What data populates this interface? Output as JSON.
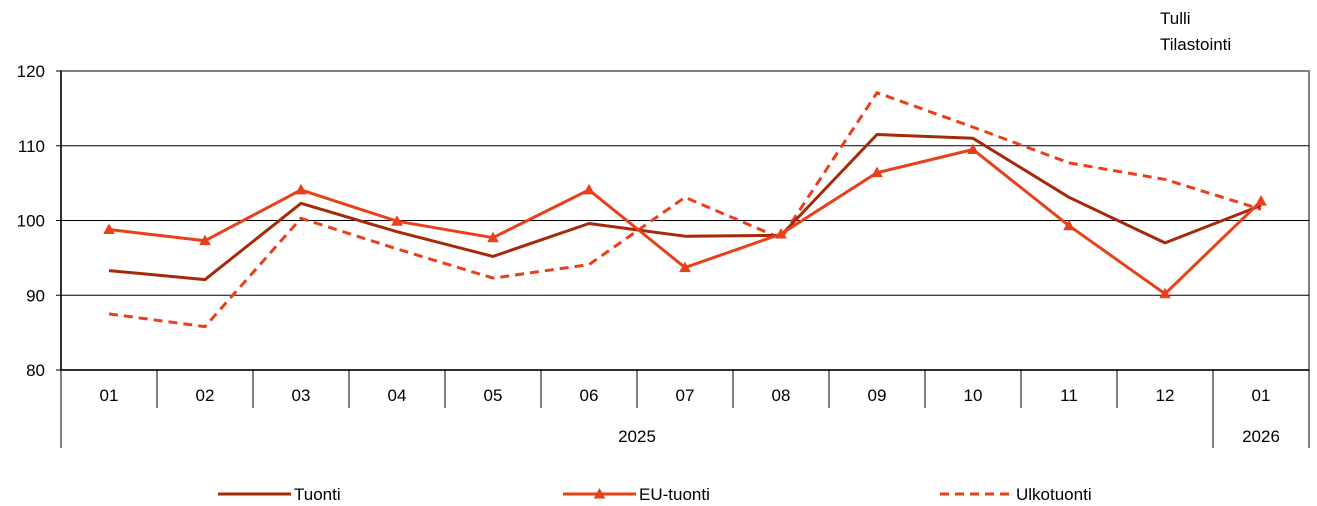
{
  "source": {
    "line1": "Tulli",
    "line2": "Tilastointi"
  },
  "chart_data": {
    "type": "line",
    "title": "",
    "xlabel": "",
    "ylabel": "",
    "categories": [
      "01",
      "02",
      "03",
      "04",
      "05",
      "06",
      "07",
      "08",
      "09",
      "10",
      "11",
      "12",
      "01"
    ],
    "year_groups": [
      {
        "label": "2025",
        "span": 12
      },
      {
        "label": "2026",
        "span": 1
      }
    ],
    "ylim": [
      80,
      120
    ],
    "yticks": [
      "80",
      "90",
      "100",
      "110",
      "120"
    ],
    "grid": true,
    "legend_position": "bottom",
    "series": [
      {
        "name": "Tuonti",
        "color": "#a52a0a",
        "style": "solid",
        "values": [
          93.3,
          92.1,
          102.3,
          98.5,
          95.2,
          99.6,
          97.9,
          98.0,
          111.5,
          111.0,
          103.1,
          97.0,
          102.0
        ]
      },
      {
        "name": "EU-tuonti",
        "color": "#e8401a",
        "style": "solid-triangle",
        "values": [
          98.8,
          97.3,
          104.1,
          99.9,
          97.7,
          104.1,
          93.7,
          98.2,
          106.4,
          109.5,
          99.3,
          90.2,
          102.6
        ]
      },
      {
        "name": "Ulkotuonti",
        "color": "#e8401a",
        "style": "dashed",
        "values": [
          87.5,
          85.8,
          100.3,
          96.2,
          92.3,
          94.1,
          103.1,
          97.6,
          117.1,
          112.5,
          107.7,
          105.5,
          101.5
        ]
      }
    ]
  }
}
